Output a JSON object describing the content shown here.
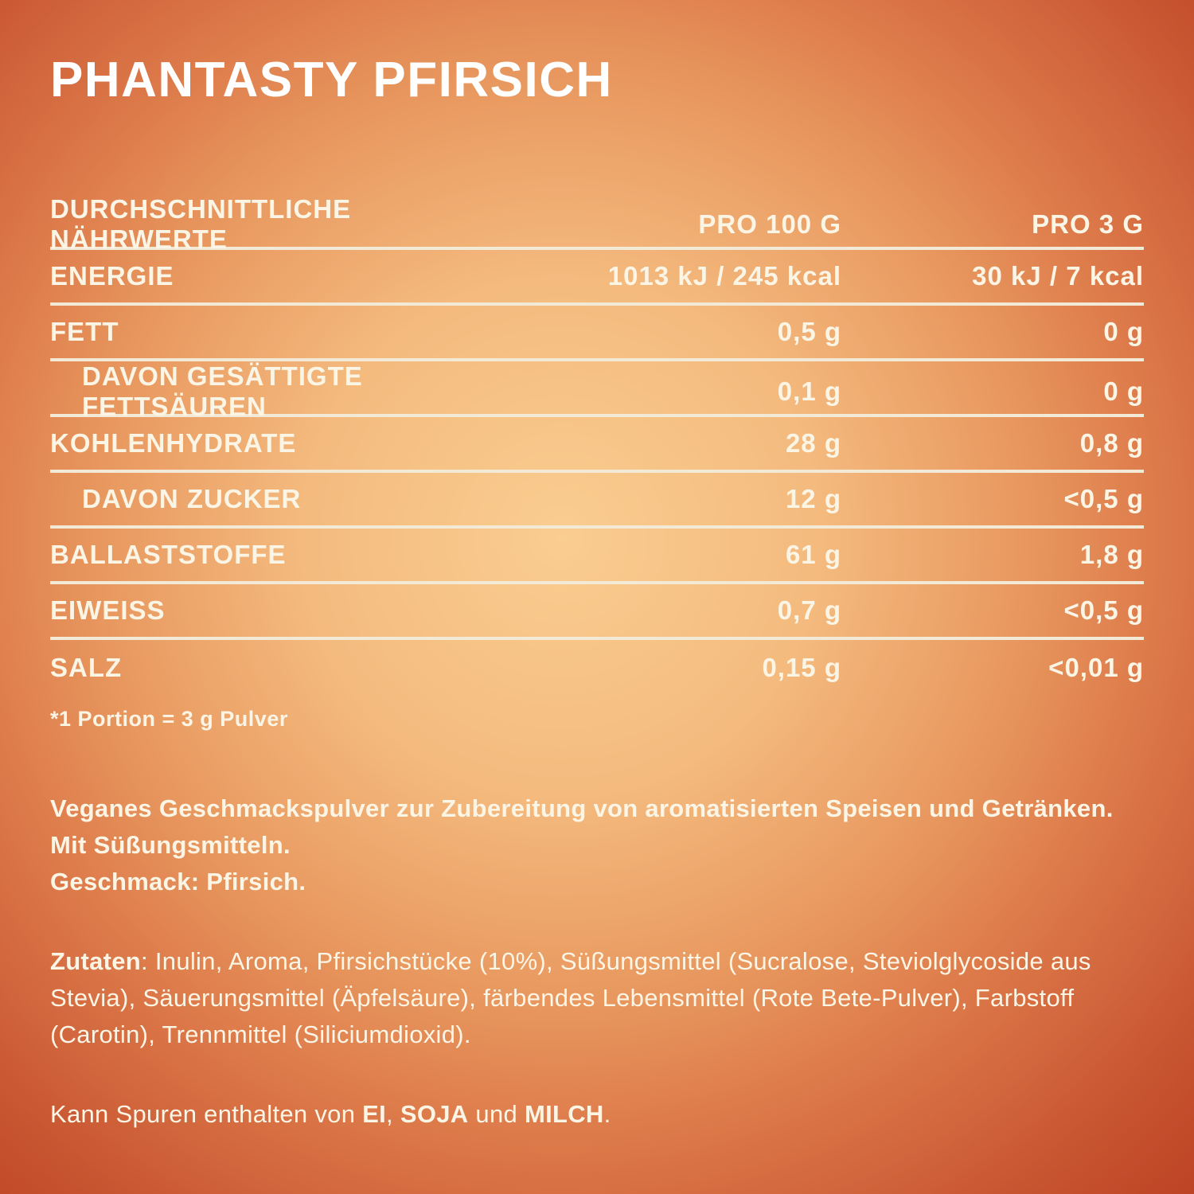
{
  "title": "PHANTASTY PFIRSICH",
  "table": {
    "header": {
      "label": "DURCHSCHNITTLICHE NÄHRWERTE",
      "col_per100": "PRO 100 G",
      "col_per3": "PRO 3 G"
    },
    "rows": [
      {
        "label": "ENERGIE",
        "per_100g": "1013 kJ / 245 kcal",
        "per_3g": "30 kJ / 7 kcal"
      },
      {
        "label": "FETT",
        "per_100g": "0,5 g",
        "per_3g": "0 g"
      },
      {
        "label": "DAVON GESÄTTIGTE FETTSÄUREN",
        "per_100g": "0,1 g",
        "per_3g": "0 g"
      },
      {
        "label": "KOHLENHYDRATE",
        "per_100g": "28 g",
        "per_3g": "0,8 g"
      },
      {
        "label": "DAVON ZUCKER",
        "per_100g": "12 g",
        "per_3g": "<0,5 g"
      },
      {
        "label": "BALLASTSTOFFE",
        "per_100g": "61 g",
        "per_3g": "1,8 g"
      },
      {
        "label": "EIWEISS",
        "per_100g": "0,7 g",
        "per_3g": "<0,5 g"
      },
      {
        "label": "SALZ",
        "per_100g": "0,15 g",
        "per_3g": "<0,01 g"
      }
    ]
  },
  "footnote": "*1 Portion = 3 g Pulver",
  "description": {
    "line1": "Veganes Geschmackspulver zur Zubereitung von aromatisierten Speisen und Getränken. Mit Süßungsmitteln.",
    "line2": "Geschmack: Pfirsich."
  },
  "ingredients": {
    "label": "Zutaten",
    "text": ": Inulin, Aroma, Pfirsichstücke (10%), Süßungsmittel (Sucralose, Steviolglycoside aus Stevia), Säuerungsmittel (Äpfelsäure), färbendes Lebensmittel (Rote Bete-Pulver), Farbstoff (Carotin), Trennmittel (Siliciumdioxid)."
  },
  "allergens": {
    "prefix": "Kann Spuren enthalten von ",
    "item1": "EI",
    "sep1": ", ",
    "item2": "SOJA",
    "sep2": " und ",
    "item3": "MILCH",
    "suffix": "."
  },
  "colors": {
    "background_center": "#facd90",
    "background_edge": "#bc4224",
    "divider": "#f2ead7",
    "table_text": "#fbf5e6",
    "title_text": "#ffffff"
  }
}
